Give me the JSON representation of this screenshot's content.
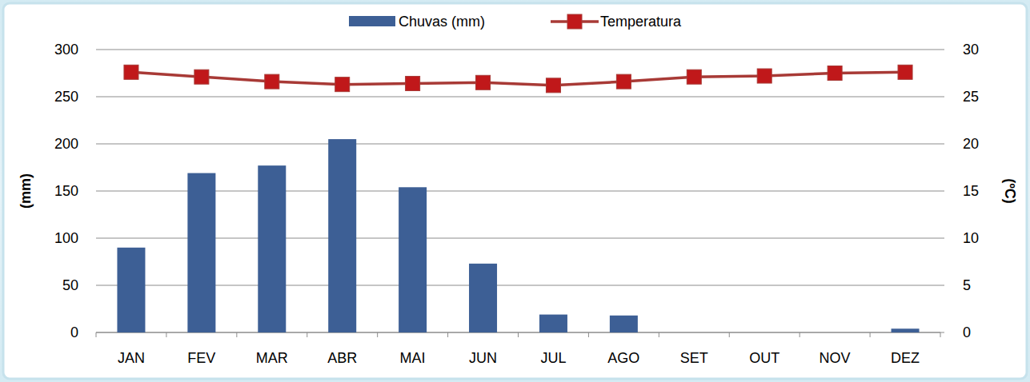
{
  "chart_data": {
    "type": "bar",
    "categories": [
      "JAN",
      "FEV",
      "MAR",
      "ABR",
      "MAI",
      "JUN",
      "JUL",
      "AGO",
      "SET",
      "OUT",
      "NOV",
      "DEZ"
    ],
    "series": [
      {
        "name": "Chuvas (mm)",
        "type": "bar",
        "color": "#3d5f95",
        "values": [
          90,
          169,
          177,
          205,
          154,
          73,
          19,
          18,
          0,
          0,
          0,
          4
        ]
      },
      {
        "name": "Temperatura",
        "type": "line",
        "axis": "y2",
        "color": "#a83a36",
        "marker": "square",
        "values": [
          27.6,
          27.1,
          26.6,
          26.3,
          26.4,
          26.5,
          26.2,
          26.6,
          27.1,
          27.2,
          27.5,
          27.6
        ]
      }
    ],
    "y_label": "(mm)",
    "y2_label": "(ºC)",
    "ylim": [
      0,
      300
    ],
    "yticks": [
      0,
      50,
      100,
      150,
      200,
      250,
      300
    ],
    "y2lim": [
      0,
      30
    ],
    "y2ticks": [
      0,
      5,
      10,
      15,
      20,
      25,
      30
    ],
    "grid": true,
    "legend": "top"
  }
}
